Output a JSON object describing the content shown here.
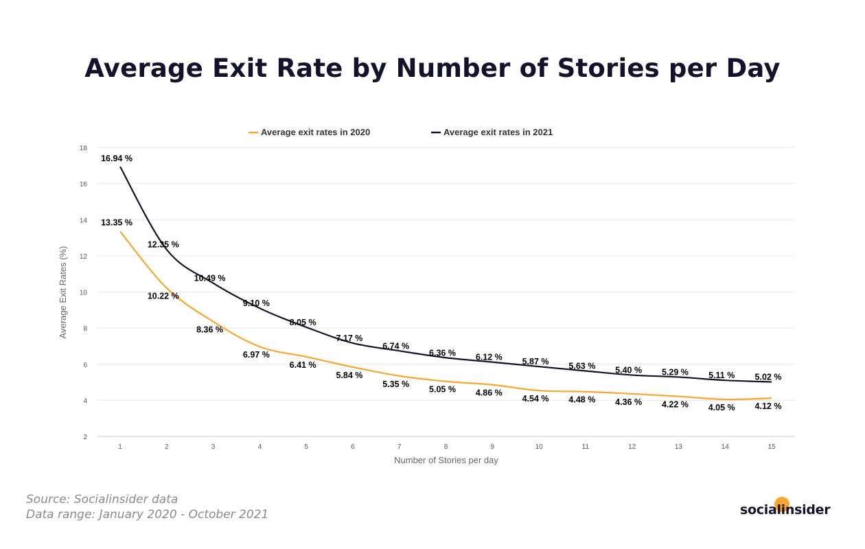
{
  "title": "Average Exit Rate by Number of Stories per Day",
  "footer": {
    "source": "Source: Socialinsider data",
    "range": "Data range: January 2020 - October 2021"
  },
  "logo": {
    "text": "socialinsider",
    "icon": "logo-dot-icon"
  },
  "colors": {
    "series2020": "#f7a630",
    "series2021": "#14122b",
    "grid": "#e6e6e6",
    "text": "#555555"
  },
  "chart_data": {
    "type": "line",
    "x": [
      1,
      2,
      3,
      4,
      5,
      6,
      7,
      8,
      9,
      10,
      11,
      12,
      13,
      14,
      15
    ],
    "xlabel": "Number of Stories per day",
    "ylabel": "Average Exit Rates (%)",
    "ylim": [
      2,
      18
    ],
    "yticks": [
      2,
      4,
      6,
      8,
      10,
      12,
      14,
      16,
      18
    ],
    "grid": true,
    "legend_position": "top",
    "series": [
      {
        "name": "Average exit rates in 2020",
        "color": "#f7a630",
        "values": [
          13.35,
          10.22,
          8.36,
          6.97,
          6.41,
          5.84,
          5.35,
          5.05,
          4.86,
          4.54,
          4.48,
          4.36,
          4.22,
          4.05,
          4.12
        ],
        "labels": [
          "13.35 %",
          "10.22 %",
          "8.36 %",
          "6.97 %",
          "6.41 %",
          "5.84 %",
          "5.35 %",
          "5.05 %",
          "4.86 %",
          "4.54 %",
          "4.48 %",
          "4.36 %",
          "4.22 %",
          "4.05 %",
          "4.12 %"
        ]
      },
      {
        "name": "Average exit rates in 2021",
        "color": "#14122b",
        "values": [
          16.94,
          12.35,
          10.49,
          9.1,
          8.05,
          7.17,
          6.74,
          6.36,
          6.12,
          5.87,
          5.63,
          5.4,
          5.29,
          5.11,
          5.02
        ],
        "labels": [
          "16.94 %",
          "12.35 %",
          "10.49 %",
          "9.10 %",
          "8.05 %",
          "7.17 %",
          "6.74 %",
          "6.36 %",
          "6.12 %",
          "5.87 %",
          "5.63 %",
          "5.40 %",
          "5.29 %",
          "5.11 %",
          "5.02 %"
        ]
      }
    ]
  }
}
